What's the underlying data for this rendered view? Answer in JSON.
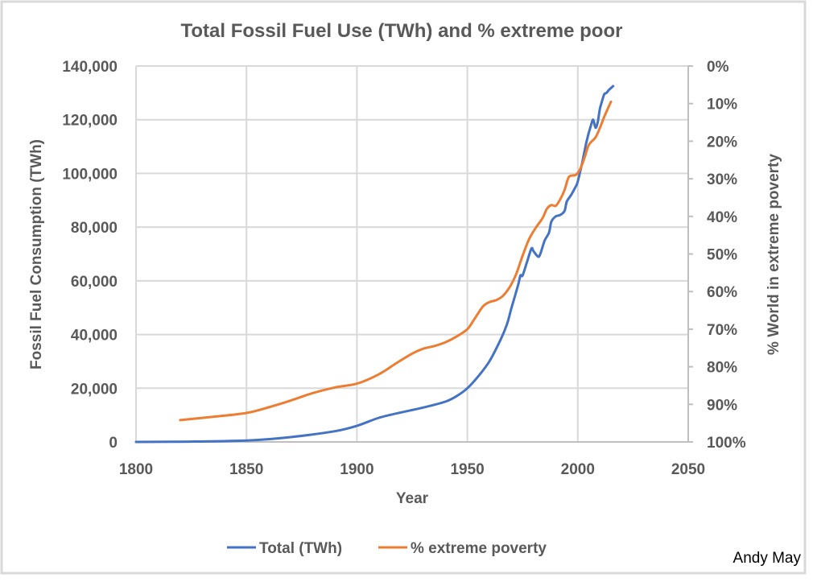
{
  "chart_data": {
    "type": "line",
    "title": "Total Fossil Fuel Use (TWh) and % extreme poor",
    "xlabel": "Year",
    "ylabel": "Fossil Fuel Consumption (TWh)",
    "y2label": "% World in extreme poverty",
    "xlim": [
      1800,
      2050
    ],
    "ylim": [
      0,
      140000
    ],
    "y2lim": [
      0,
      100
    ],
    "y2_reversed": true,
    "grid": true,
    "legend_position": "bottom",
    "x_ticks": [
      "1800",
      "1850",
      "1900",
      "1950",
      "2000",
      "2050"
    ],
    "x_tick_values": [
      1800,
      1850,
      1900,
      1950,
      2000,
      2050
    ],
    "y_ticks": [
      "0",
      "20,000",
      "40,000",
      "60,000",
      "80,000",
      "100,000",
      "120,000",
      "140,000"
    ],
    "y_tick_values": [
      0,
      20000,
      40000,
      60000,
      80000,
      100000,
      120000,
      140000
    ],
    "y2_ticks": [
      "0%",
      "10%",
      "20%",
      "30%",
      "40%",
      "50%",
      "60%",
      "70%",
      "80%",
      "90%",
      "100%"
    ],
    "y2_tick_values": [
      0,
      10,
      20,
      30,
      40,
      50,
      60,
      70,
      80,
      90,
      100
    ],
    "series": [
      {
        "name": "Total (TWh)",
        "axis": "left",
        "color": "#4472C4",
        "x": [
          1800,
          1820,
          1850,
          1870,
          1890,
          1900,
          1910,
          1920,
          1930,
          1940,
          1945,
          1950,
          1955,
          1960,
          1965,
          1968,
          1970,
          1973,
          1974,
          1975,
          1977,
          1979,
          1980,
          1982,
          1983,
          1985,
          1987,
          1988,
          1990,
          1992,
          1994,
          1995,
          1997,
          1999,
          2000,
          2002,
          2004,
          2006,
          2007,
          2008,
          2009,
          2010,
          2011,
          2012,
          2013,
          2014,
          2016
        ],
        "values": [
          0,
          100,
          500,
          1800,
          4000,
          6000,
          9000,
          11000,
          12800,
          15000,
          17000,
          20000,
          24500,
          30000,
          38000,
          44000,
          50000,
          58500,
          62000,
          62000,
          67000,
          72000,
          71000,
          69000,
          70000,
          75000,
          78000,
          82000,
          84000,
          84500,
          86000,
          89500,
          92000,
          95000,
          97000,
          104000,
          112000,
          118000,
          120000,
          117000,
          119000,
          124000,
          127000,
          129500,
          130000,
          131000,
          132500
        ]
      },
      {
        "name": "% extreme poverty",
        "axis": "right",
        "color": "#ED7D31",
        "x": [
          1820,
          1835,
          1850,
          1860,
          1870,
          1880,
          1890,
          1900,
          1910,
          1918,
          1925,
          1930,
          1935,
          1940,
          1945,
          1950,
          1953,
          1957,
          1960,
          1963,
          1966,
          1969,
          1972,
          1975,
          1978,
          1981,
          1984,
          1986,
          1988,
          1990,
          1992,
          1994,
          1996,
          1999,
          2001,
          2003,
          2005,
          2008,
          2010,
          2012,
          2015
        ],
        "values": [
          94.2,
          93.3,
          92.3,
          90.8,
          89.0,
          87.0,
          85.5,
          84.5,
          82.0,
          79.0,
          76.5,
          75.2,
          74.5,
          73.5,
          72.0,
          70.0,
          67.5,
          64.0,
          62.8,
          62.3,
          61.2,
          59.0,
          55.5,
          50.5,
          46.0,
          43.0,
          40.5,
          38.0,
          37.0,
          37.2,
          35.5,
          33.0,
          29.5,
          29.0,
          27.5,
          24.5,
          21.0,
          19.0,
          16.5,
          13.5,
          9.5
        ]
      }
    ]
  },
  "credit": "Andy May"
}
